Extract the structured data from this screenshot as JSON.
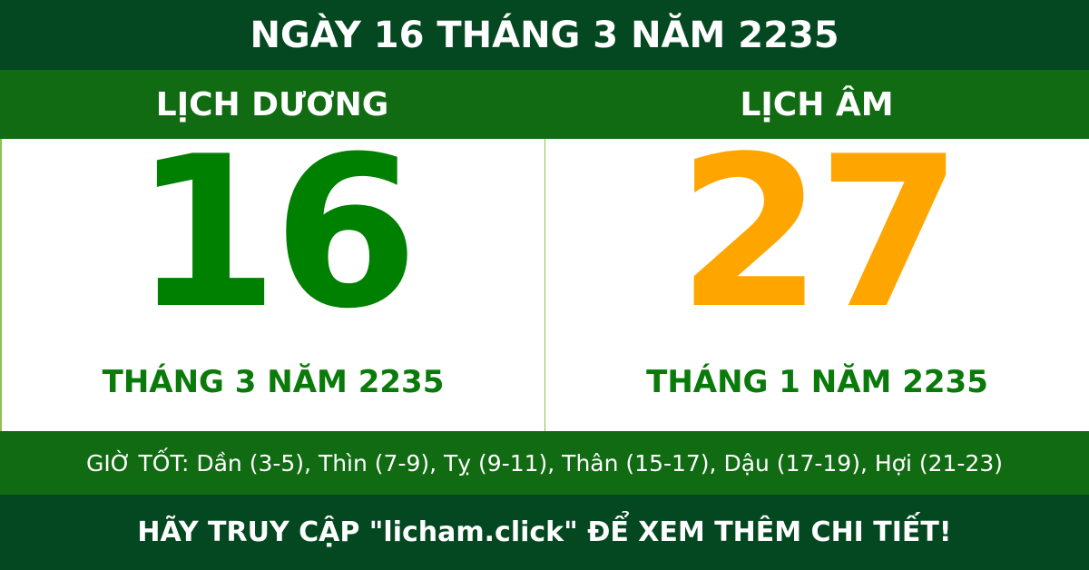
{
  "header": {
    "title": "NGÀY 16 THÁNG 3 NĂM 2235"
  },
  "solar": {
    "label": "LỊCH DƯƠNG",
    "day": "16",
    "month_year": "THÁNG 3 NĂM 2235"
  },
  "lunar": {
    "label": "LỊCH ÂM",
    "day": "27",
    "month_year": "THÁNG 1 NĂM 2235"
  },
  "good_hours": "GIỜ TỐT: Dần (3-5), Thìn (7-9), Tỵ (9-11), Thân (15-17), Dậu (17-19), Hợi (21-23)",
  "footer": {
    "text": "HÃY TRUY CẬP \"licham.click\" ĐỂ XEM THÊM CHI TIẾT!"
  },
  "colors": {
    "dark_green": "#034820",
    "band_green": "#116b12",
    "solar_day": "#008000",
    "lunar_day": "#ffa500"
  }
}
